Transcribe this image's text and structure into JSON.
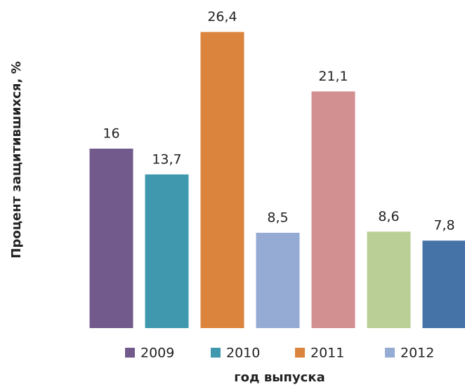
{
  "chart_data": {
    "type": "bar",
    "y_label": "Процент защитившихся, %",
    "x_label": "год выпуска",
    "categories": [
      null,
      null,
      null,
      null,
      null,
      null,
      null
    ],
    "values": [
      16,
      13.7,
      26.4,
      8.5,
      21.1,
      8.6,
      7.8
    ],
    "value_labels": [
      "16",
      "13,7",
      "26,4",
      "8,5",
      "21,1",
      "8,6",
      "7,8"
    ],
    "colors": [
      "#735a8c",
      "#3f98ad",
      "#db843d",
      "#95abd4",
      "#d29090",
      "#b9cf96",
      "#4572a7"
    ],
    "legend": [
      "2009",
      "2010",
      "2011",
      "2012"
    ],
    "ylim": [
      0,
      27.5
    ]
  }
}
